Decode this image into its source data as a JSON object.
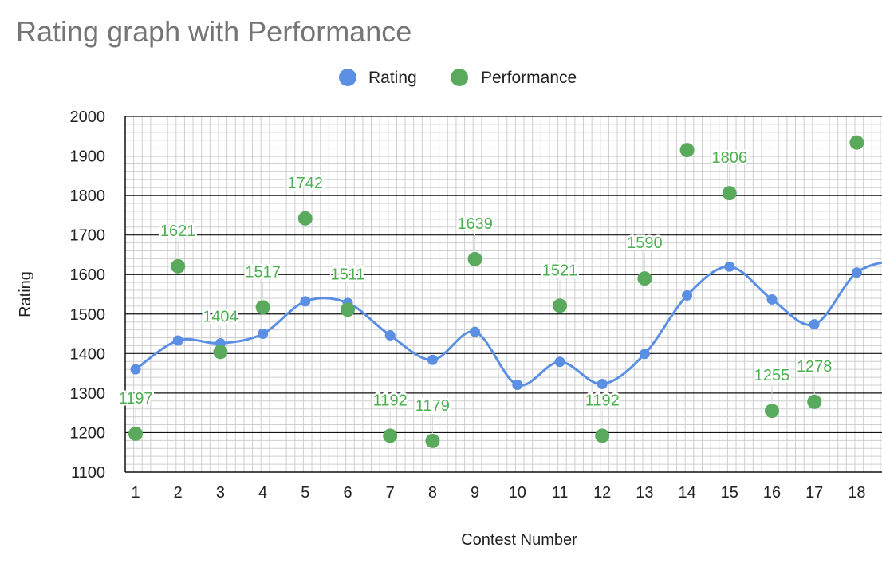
{
  "chart_data": {
    "type": "line",
    "title": "Rating graph with Performance",
    "xlabel": "Contest Number",
    "ylabel": "Rating",
    "categories": [
      "1",
      "2",
      "3",
      "4",
      "5",
      "6",
      "7",
      "8",
      "9",
      "10",
      "11",
      "12",
      "13",
      "14",
      "15",
      "16",
      "17",
      "18"
    ],
    "ylim": [
      1100,
      2000
    ],
    "yticks": [
      "2000",
      "1900",
      "1800",
      "1700",
      "1600",
      "1500",
      "1400",
      "1300",
      "1200",
      "1100"
    ],
    "legend_position": "top",
    "grid": true,
    "series": [
      {
        "name": "Rating",
        "style": "smooth-line-with-markers",
        "color": "#5b8fe3",
        "values": [
          1360,
          1433,
          1426,
          1450,
          1532,
          1528,
          1446,
          1384,
          1455,
          1321,
          1379,
          1323,
          1399,
          1547,
          1620,
          1537,
          1474,
          1605
        ]
      },
      {
        "name": "Performance",
        "style": "markers",
        "color": "#5aaa5e",
        "values": [
          1197,
          1621,
          1404,
          1517,
          1742,
          1511,
          1192,
          1179,
          1639,
          null,
          1521,
          1192,
          1590,
          1915,
          1806,
          1255,
          1278,
          1934
        ],
        "labels": [
          "1197",
          "1621",
          "1404",
          "1517",
          "1742",
          "1511",
          "1192",
          "1179",
          "1639",
          null,
          "1521",
          "1192",
          "1590",
          null,
          "1806",
          "1255",
          "1278",
          null
        ]
      }
    ]
  }
}
